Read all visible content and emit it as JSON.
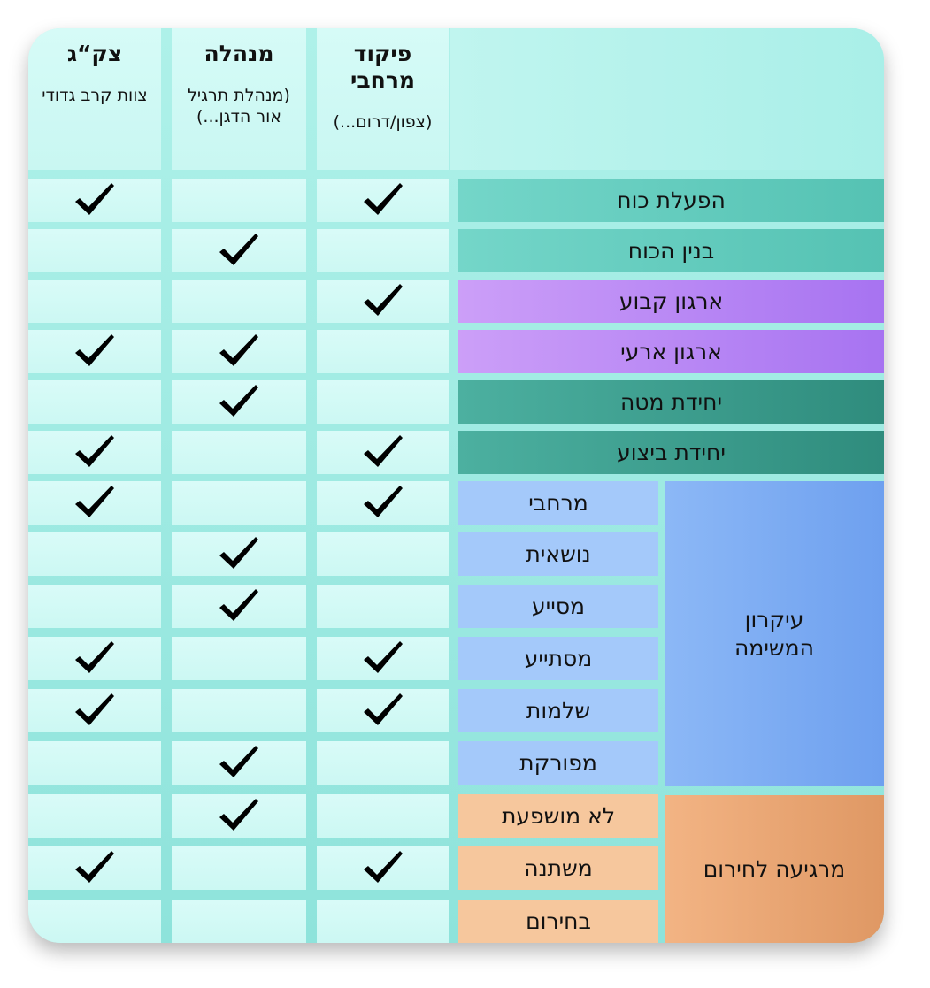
{
  "columns": [
    {
      "title": "פיקוד מרחבי",
      "subtitle": "(צפון/דרום...)"
    },
    {
      "title": "מנהלה",
      "subtitle": "(מנהלת תרגיל אור הדגן...)"
    },
    {
      "title": "צק“ג",
      "subtitle": "צוות קרב גדודי"
    }
  ],
  "groups": [
    {
      "label": "עיקרון המשימה"
    },
    {
      "label": "מרגיעה לחירום"
    }
  ],
  "rows": [
    {
      "label": "הפעלת כוח",
      "checks": [
        true,
        false,
        true
      ]
    },
    {
      "label": "בנין הכוח",
      "checks": [
        false,
        true,
        false
      ]
    },
    {
      "label": "ארגון קבוע",
      "checks": [
        true,
        false,
        false
      ]
    },
    {
      "label": "ארגון ארעי",
      "checks": [
        false,
        true,
        true
      ]
    },
    {
      "label": "יחידת מטה",
      "checks": [
        false,
        true,
        false
      ]
    },
    {
      "label": "יחידת ביצוע",
      "checks": [
        true,
        false,
        true
      ]
    },
    {
      "label": "מרחבי",
      "checks": [
        true,
        false,
        true
      ]
    },
    {
      "label": "נושאית",
      "checks": [
        false,
        true,
        false
      ]
    },
    {
      "label": "מסייע",
      "checks": [
        false,
        true,
        false
      ]
    },
    {
      "label": "מסתייע",
      "checks": [
        true,
        false,
        true
      ]
    },
    {
      "label": "שלמות",
      "checks": [
        true,
        false,
        true
      ]
    },
    {
      "label": "מפורקת",
      "checks": [
        false,
        true,
        false
      ]
    },
    {
      "label": "לא מושפעת",
      "checks": [
        false,
        true,
        false
      ]
    },
    {
      "label": "משתנה",
      "checks": [
        true,
        false,
        true
      ]
    },
    {
      "label": "בחירום",
      "checks": [
        false,
        false,
        false
      ]
    }
  ],
  "icons": {
    "check": "checkmark-icon"
  },
  "colors": {
    "teal": "#6fd3c5",
    "purple": "#b989f5",
    "dark_teal": "#3e9f90",
    "blue": "#a4c9fa",
    "orange": "#f6c79d"
  }
}
